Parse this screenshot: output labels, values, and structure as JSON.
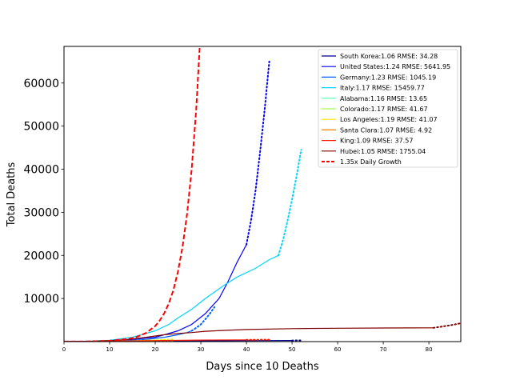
{
  "chart_data": {
    "type": "line",
    "title": "",
    "xlabel": "Days since 10 Deaths",
    "ylabel": "Total Deaths",
    "xlim": [
      0,
      87
    ],
    "ylim": [
      0,
      68500
    ],
    "xticks": [
      0,
      10,
      20,
      30,
      40,
      50,
      60,
      70,
      80
    ],
    "yticks": [
      10000,
      20000,
      30000,
      40000,
      50000,
      60000
    ],
    "grid": false,
    "legend_position": "top-right",
    "series": [
      {
        "name": "South Korea:1.06 RMSE: 34.28",
        "color": "#00008f",
        "style": "solid",
        "values": [
          [
            0,
            10
          ],
          [
            10,
            60
          ],
          [
            20,
            120
          ],
          [
            30,
            180
          ],
          [
            40,
            230
          ],
          [
            50,
            260
          ]
        ],
        "projection": [
          [
            50,
            260
          ],
          [
            52,
            280
          ]
        ]
      },
      {
        "name": "United States:1.24 RMSE: 5641.95",
        "color": "#0000ff",
        "style": "solid",
        "values": [
          [
            0,
            10
          ],
          [
            5,
            40
          ],
          [
            10,
            150
          ],
          [
            15,
            500
          ],
          [
            20,
            1000
          ],
          [
            22,
            1600
          ],
          [
            25,
            2500
          ],
          [
            28,
            4000
          ],
          [
            31,
            6500
          ],
          [
            34,
            10000
          ],
          [
            36,
            14000
          ],
          [
            38,
            18500
          ],
          [
            39,
            20500
          ],
          [
            40,
            22500
          ]
        ],
        "projection": [
          [
            40,
            22500
          ],
          [
            41,
            28000
          ],
          [
            42,
            35000
          ],
          [
            43,
            44000
          ],
          [
            44,
            54000
          ],
          [
            45,
            65000
          ]
        ]
      },
      {
        "name": "Germany:1.23 RMSE: 1045.19",
        "color": "#0060ff",
        "style": "solid",
        "values": [
          [
            0,
            10
          ],
          [
            10,
            100
          ],
          [
            15,
            300
          ],
          [
            18,
            500
          ],
          [
            22,
            1000
          ],
          [
            25,
            1600
          ],
          [
            27,
            2100
          ],
          [
            28,
            2500
          ]
        ],
        "projection": [
          [
            28,
            2500
          ],
          [
            29,
            3200
          ],
          [
            30,
            4000
          ],
          [
            31,
            5200
          ],
          [
            32,
            6500
          ],
          [
            33,
            8000
          ]
        ]
      },
      {
        "name": "Italy:1.17 RMSE: 15459.77",
        "color": "#00d4ff",
        "style": "solid",
        "values": [
          [
            0,
            10
          ],
          [
            5,
            80
          ],
          [
            10,
            300
          ],
          [
            15,
            1000
          ],
          [
            20,
            2500
          ],
          [
            23,
            4000
          ],
          [
            25,
            5500
          ],
          [
            28,
            7500
          ],
          [
            31,
            10000
          ],
          [
            35,
            13000
          ],
          [
            38,
            15000
          ],
          [
            42,
            17000
          ],
          [
            45,
            19000
          ],
          [
            47,
            20000
          ]
        ],
        "projection": [
          [
            47,
            20000
          ],
          [
            48,
            23500
          ],
          [
            49,
            28000
          ],
          [
            50,
            33000
          ],
          [
            51,
            38500
          ],
          [
            52,
            44500
          ]
        ]
      },
      {
        "name": "Alabama:1.16 RMSE: 13.65",
        "color": "#4dffaa",
        "style": "solid",
        "values": [
          [
            0,
            10
          ],
          [
            5,
            20
          ],
          [
            10,
            40
          ]
        ],
        "projection": [
          [
            10,
            40
          ],
          [
            14,
            60
          ]
        ]
      },
      {
        "name": "Colorado:1.17 RMSE: 41.67",
        "color": "#aaff4d",
        "style": "solid",
        "values": [
          [
            0,
            10
          ],
          [
            8,
            50
          ],
          [
            16,
            200
          ]
        ],
        "projection": [
          [
            16,
            200
          ],
          [
            20,
            300
          ]
        ]
      },
      {
        "name": "Los Angeles:1.19 RMSE: 41.07",
        "color": "#ffe600",
        "style": "solid",
        "values": [
          [
            0,
            10
          ],
          [
            10,
            60
          ],
          [
            18,
            250
          ]
        ],
        "projection": [
          [
            18,
            250
          ],
          [
            24,
            500
          ]
        ]
      },
      {
        "name": "Santa Clara:1.07 RMSE: 4.92",
        "color": "#ff8000",
        "style": "solid",
        "values": [
          [
            0,
            10
          ],
          [
            10,
            30
          ],
          [
            18,
            60
          ]
        ],
        "projection": [
          [
            18,
            60
          ],
          [
            24,
            90
          ]
        ]
      },
      {
        "name": "King:1.09 RMSE: 37.57",
        "color": "#ff1a00",
        "style": "solid",
        "values": [
          [
            0,
            10
          ],
          [
            10,
            100
          ],
          [
            20,
            250
          ],
          [
            30,
            350
          ],
          [
            40,
            400
          ]
        ],
        "projection": [
          [
            40,
            400
          ],
          [
            45,
            450
          ]
        ]
      },
      {
        "name": "Hubei:1.05 RMSE: 1755.04",
        "color": "#800000",
        "style": "solid",
        "values": [
          [
            0,
            10
          ],
          [
            5,
            50
          ],
          [
            10,
            200
          ],
          [
            13,
            400
          ],
          [
            15,
            600
          ],
          [
            18,
            1000
          ],
          [
            20,
            1300
          ],
          [
            22,
            1600
          ],
          [
            25,
            1900
          ],
          [
            28,
            2100
          ],
          [
            31,
            2400
          ],
          [
            35,
            2600
          ],
          [
            40,
            2800
          ],
          [
            50,
            3000
          ],
          [
            60,
            3100
          ],
          [
            70,
            3150
          ],
          [
            81,
            3200
          ]
        ],
        "projection": [
          [
            81,
            3200
          ],
          [
            83,
            3500
          ],
          [
            85,
            3850
          ],
          [
            87,
            4250
          ]
        ]
      },
      {
        "name": "1.35x Daily Growth",
        "color": "#ff0000",
        "style": "dashed",
        "values": [
          [
            0,
            10
          ],
          [
            5,
            45
          ],
          [
            10,
            200
          ],
          [
            14,
            600
          ],
          [
            16,
            1100
          ],
          [
            18,
            2000
          ],
          [
            20,
            3600
          ],
          [
            21,
            4900
          ],
          [
            22,
            6600
          ],
          [
            23,
            8900
          ],
          [
            24,
            12000
          ],
          [
            25,
            16300
          ],
          [
            26,
            22000
          ],
          [
            27,
            29700
          ],
          [
            28,
            40000
          ],
          [
            29,
            54000
          ],
          [
            30,
            73000
          ]
        ]
      }
    ]
  }
}
